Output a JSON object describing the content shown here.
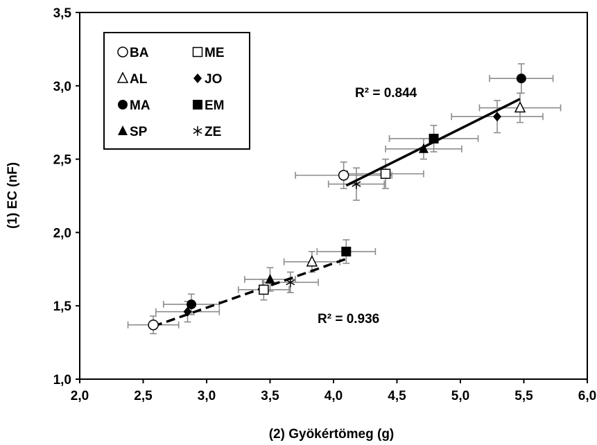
{
  "chart_data": {
    "type": "scatter",
    "xlabel": "(2) Gyökértömeg (g)",
    "ylabel": "(1) EC (nF)",
    "xlim": [
      2.0,
      6.0
    ],
    "ylim": [
      1.0,
      3.5
    ],
    "x_ticks": [
      "2,0",
      "2,5",
      "3,0",
      "3,5",
      "4,0",
      "4,5",
      "5,0",
      "5,5",
      "6,0"
    ],
    "y_ticks": [
      "1,0",
      "1,5",
      "2,0",
      "2,5",
      "3,0",
      "3,5"
    ],
    "grid": false,
    "legend_position": "top-left",
    "legend": [
      {
        "label": "BA",
        "marker": "open-circle"
      },
      {
        "label": "ME",
        "marker": "open-square"
      },
      {
        "label": "AL",
        "marker": "open-triangle"
      },
      {
        "label": "JO",
        "marker": "filled-diamond"
      },
      {
        "label": "MA",
        "marker": "filled-circle"
      },
      {
        "label": "EM",
        "marker": "filled-square"
      },
      {
        "label": "SP",
        "marker": "filled-triangle"
      },
      {
        "label": "ZE",
        "marker": "asterisk"
      }
    ],
    "groups": [
      {
        "r2_label": "R² = 0.936",
        "trend_style": "dashed",
        "trend_line": {
          "x": [
            2.58,
            4.1
          ],
          "y": [
            1.36,
            1.82
          ]
        },
        "points": [
          {
            "series": "BA",
            "x": 2.58,
            "y": 1.37,
            "xerr": 0.2,
            "yerr": 0.06
          },
          {
            "series": "JO",
            "x": 2.85,
            "y": 1.46,
            "xerr": 0.25,
            "yerr": 0.07
          },
          {
            "series": "MA",
            "x": 2.88,
            "y": 1.51,
            "xerr": 0.22,
            "yerr": 0.07
          },
          {
            "series": "ME",
            "x": 3.45,
            "y": 1.61,
            "xerr": 0.2,
            "yerr": 0.07
          },
          {
            "series": "SP",
            "x": 3.5,
            "y": 1.68,
            "xerr": 0.2,
            "yerr": 0.08
          },
          {
            "series": "ZE",
            "x": 3.66,
            "y": 1.66,
            "xerr": 0.22,
            "yerr": 0.07
          },
          {
            "series": "AL",
            "x": 3.83,
            "y": 1.8,
            "xerr": 0.22,
            "yerr": 0.07
          },
          {
            "series": "EM",
            "x": 4.1,
            "y": 1.87,
            "xerr": 0.23,
            "yerr": 0.08
          }
        ]
      },
      {
        "r2_label": "R² = 0.844",
        "trend_style": "solid",
        "trend_line": {
          "x": [
            4.1,
            5.47
          ],
          "y": [
            2.32,
            2.91
          ]
        },
        "points": [
          {
            "series": "BA",
            "x": 4.08,
            "y": 2.39,
            "xerr": 0.38,
            "yerr": 0.09
          },
          {
            "series": "ZE",
            "x": 4.18,
            "y": 2.33,
            "xerr": 0.22,
            "yerr": 0.11
          },
          {
            "series": "ME",
            "x": 4.41,
            "y": 2.4,
            "xerr": 0.3,
            "yerr": 0.1
          },
          {
            "series": "SP",
            "x": 4.71,
            "y": 2.57,
            "xerr": 0.3,
            "yerr": 0.07
          },
          {
            "series": "EM",
            "x": 4.79,
            "y": 2.64,
            "xerr": 0.35,
            "yerr": 0.09
          },
          {
            "series": "JO",
            "x": 5.29,
            "y": 2.79,
            "xerr": 0.36,
            "yerr": 0.11
          },
          {
            "series": "AL",
            "x": 5.47,
            "y": 2.85,
            "xerr": 0.32,
            "yerr": 0.1
          },
          {
            "series": "MA",
            "x": 5.48,
            "y": 3.05,
            "xerr": 0.25,
            "yerr": 0.1
          }
        ]
      }
    ]
  }
}
